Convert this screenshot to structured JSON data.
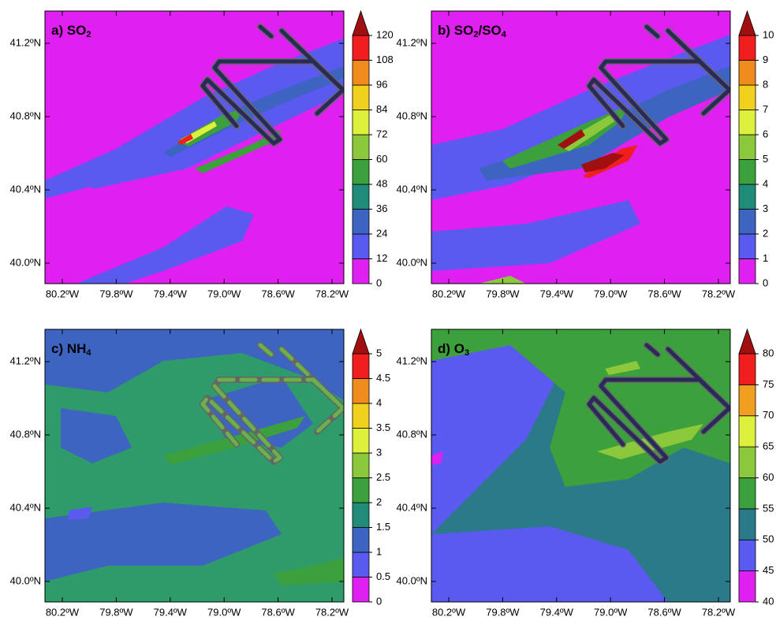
{
  "panels": [
    {
      "title": [
        {
          "text": "a) SO"
        },
        {
          "sub": "2"
        }
      ],
      "colorbar": {
        "ticks": [
          0,
          12,
          24,
          36,
          48,
          60,
          72,
          84,
          96,
          108,
          120
        ],
        "colors": [
          "#e020f0",
          "#5a5af0",
          "#3c64c0",
          "#1e8c78",
          "#3ca03c",
          "#8cc83c",
          "#dcf03c",
          "#f0d21e",
          "#f08c1e",
          "#f01e1e",
          "#a01010"
        ]
      }
    },
    {
      "title": [
        {
          "text": "b) SO"
        },
        {
          "sub": "2"
        },
        {
          "text": "/SO"
        },
        {
          "sub": "4"
        }
      ],
      "colorbar": {
        "ticks": [
          0,
          1,
          2,
          3,
          4,
          5,
          6,
          7,
          8,
          9,
          10
        ],
        "colors": [
          "#e020f0",
          "#5a5af0",
          "#3c64c0",
          "#1e8c78",
          "#3ca03c",
          "#8cc83c",
          "#dcf03c",
          "#f0d21e",
          "#f08c1e",
          "#f01e1e",
          "#a01010"
        ]
      }
    },
    {
      "title": [
        {
          "text": "c) NH"
        },
        {
          "sub": "4"
        }
      ],
      "colorbar": {
        "ticks": [
          0,
          0.5,
          1,
          1.5,
          2,
          2.5,
          3,
          3.5,
          4,
          4.5,
          5
        ],
        "colors": [
          "#e020f0",
          "#5a5af0",
          "#3c64c0",
          "#1e8c78",
          "#3ca03c",
          "#8cc83c",
          "#dcf03c",
          "#f0d21e",
          "#f08c1e",
          "#f01e1e",
          "#a01010"
        ]
      }
    },
    {
      "title": [
        {
          "text": "d) O"
        },
        {
          "sub": "3"
        }
      ],
      "colorbar": {
        "ticks": [
          40,
          45,
          50,
          55,
          60,
          65,
          70,
          75,
          80
        ],
        "colors": [
          "#e020f0",
          "#5a5af0",
          "#2a7a8a",
          "#3ca03c",
          "#8cc83c",
          "#dcf03c",
          "#f0a01e",
          "#f01e1e",
          "#a01010"
        ]
      }
    }
  ],
  "latitude_labels": [
    "41.2ºN",
    "40.8ºN",
    "40.4ºN",
    "40.0ºN"
  ],
  "longitude_labels": [
    "80.2ºW",
    "79.8ºW",
    "79.4ºW",
    "79.0ºW",
    "78.6ºW",
    "78.2ºW"
  ]
}
